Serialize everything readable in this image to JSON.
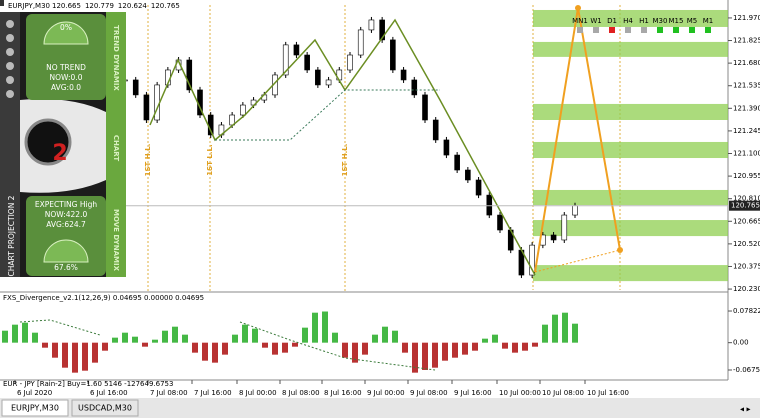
{
  "header": {
    "symbol": "EURJPY,M30",
    "quote": [
      120.665,
      120.779,
      120.624,
      120.765
    ]
  },
  "panel": {
    "top_percent": "0%",
    "trend_title": "TREND DYNAMIX",
    "trend_state": "NO TREND",
    "trend_now": "NOW:0.0",
    "trend_avg": "AVG:0.0",
    "chart_label": "CHART",
    "logo": "2",
    "projection_title": "CHART PROJECTION 2",
    "expect": "EXPECTING High",
    "move_now": "NOW:422.0",
    "move_avg": "AVG:624.7",
    "move_percent": "67.6%",
    "move_title": "MOVE DYNAMIX"
  },
  "chart_data": [
    {
      "type": "candlestick",
      "values": [
        121.572,
        121.476,
        121.315,
        121.54,
        121.636,
        121.7,
        121.508,
        121.347,
        121.219,
        121.283,
        121.347,
        121.411,
        121.443,
        121.476,
        121.604,
        121.797,
        121.732,
        121.636,
        121.54,
        121.572,
        121.636,
        121.732,
        121.893,
        121.957,
        121.829,
        121.636,
        121.572,
        121.476,
        121.315,
        121.187,
        121.09,
        120.994,
        120.93,
        120.833,
        120.705,
        120.609,
        120.48,
        120.32,
        120.512,
        120.577,
        120.545,
        120.705,
        120.765
      ],
      "up_color": "#ffffff",
      "down_color": "#000000",
      "ylim": [
        120.224,
        122.053
      ],
      "yticks": [
        {
          "value": 121.97,
          "label": "121.970"
        },
        121.825,
        {
          "value": 121.68,
          "label": "121.680"
        },
        121.535,
        {
          "value": 121.39,
          "label": "121.390"
        },
        121.245,
        {
          "value": 121.1,
          "label": "121.100"
        },
        120.955,
        {
          "value": 120.81,
          "label": "120.810"
        },
        120.665,
        {
          "value": 120.52,
          "label": "120.520"
        },
        120.375,
        {
          "value": 120.23,
          "label": "120.230"
        }
      ],
      "x_labels": [
        "6 Jul 2020",
        "6 Jul 16:00",
        "7 Jul 08:00",
        "7 Jul 16:00",
        "8 Jul 00:00",
        "8 Jul 08:00",
        "8 Jul 16:00",
        "9 Jul 00:00",
        "9 Jul 08:00",
        "9 Jul 16:00",
        "10 Jul 00:00",
        "10 Jul 08:00",
        "10 Jul 16:00"
      ],
      "zones": [
        [
          121.912,
          122.021
        ],
        [
          121.72,
          121.816
        ],
        [
          121.315,
          121.418
        ],
        [
          121.071,
          121.174
        ],
        [
          120.769,
          120.866
        ],
        [
          120.57,
          120.673
        ],
        [
          120.281,
          120.384
        ]
      ],
      "zone_color": "#8fcf50",
      "annotations": [
        "1ST H.L.",
        "1ST L.L.",
        "1ST H.L."
      ],
      "annotation_color": "#e0a020"
    },
    {
      "type": "bar",
      "title": "FXS_Divergence_v2.1(12,26,9) 0.04695 0.00000 0.04695",
      "values": [
        0.0296,
        0.0445,
        0.0494,
        0.0247,
        -0.0124,
        -0.0371,
        -0.0618,
        -0.0741,
        -0.0692,
        -0.0494,
        -0.0198,
        0.0124,
        0.0247,
        0.0148,
        -0.0099,
        0.0074,
        0.0296,
        0.0395,
        0.0198,
        -0.0247,
        -0.0445,
        -0.0494,
        -0.0296,
        0.0198,
        0.0445,
        0.0346,
        -0.0124,
        -0.0296,
        -0.0247,
        -0.0099,
        0.0371,
        0.0741,
        0.077,
        0.0247,
        -0.0371,
        -0.0494,
        -0.0296,
        0.0198,
        0.0395,
        0.0296,
        -0.0247,
        -0.0741,
        -0.0675,
        -0.0618,
        -0.0445,
        -0.0371,
        -0.0296,
        -0.0198,
        0.0099,
        0.0198,
        -0.0148,
        -0.0247,
        -0.0198,
        -0.0099,
        0.0445,
        0.0692,
        0.0741,
        0.04695
      ],
      "up_color": "#45b845",
      "down_color": "#b83232",
      "ylim": [
        -0.0873,
        0.1178
      ],
      "yticks": [
        0.07822,
        {
          "value": 0,
          "label": "0.00"
        },
        -0.06753
      ],
      "footer": "EUR - JPY [Rain-2] Buy=1.60 5146 -127649.6753"
    }
  ],
  "timeframes": [
    {
      "label": "MN1",
      "color": "#a8a8a8"
    },
    {
      "label": "W1",
      "color": "#a8a8a8"
    },
    {
      "label": "D1",
      "color": "#e02020"
    },
    {
      "label": "H4",
      "color": "#a8a8a8"
    },
    {
      "label": "H1",
      "color": "#a8a8a8"
    },
    {
      "label": "M30",
      "color": "#20c020"
    },
    {
      "label": "M15",
      "color": "#20c020"
    },
    {
      "label": "M5",
      "color": "#20c020"
    },
    {
      "label": "M1",
      "color": "#20c020"
    }
  ],
  "tabs": [
    "EURJPY,M30",
    "USDCAD,M30"
  ]
}
